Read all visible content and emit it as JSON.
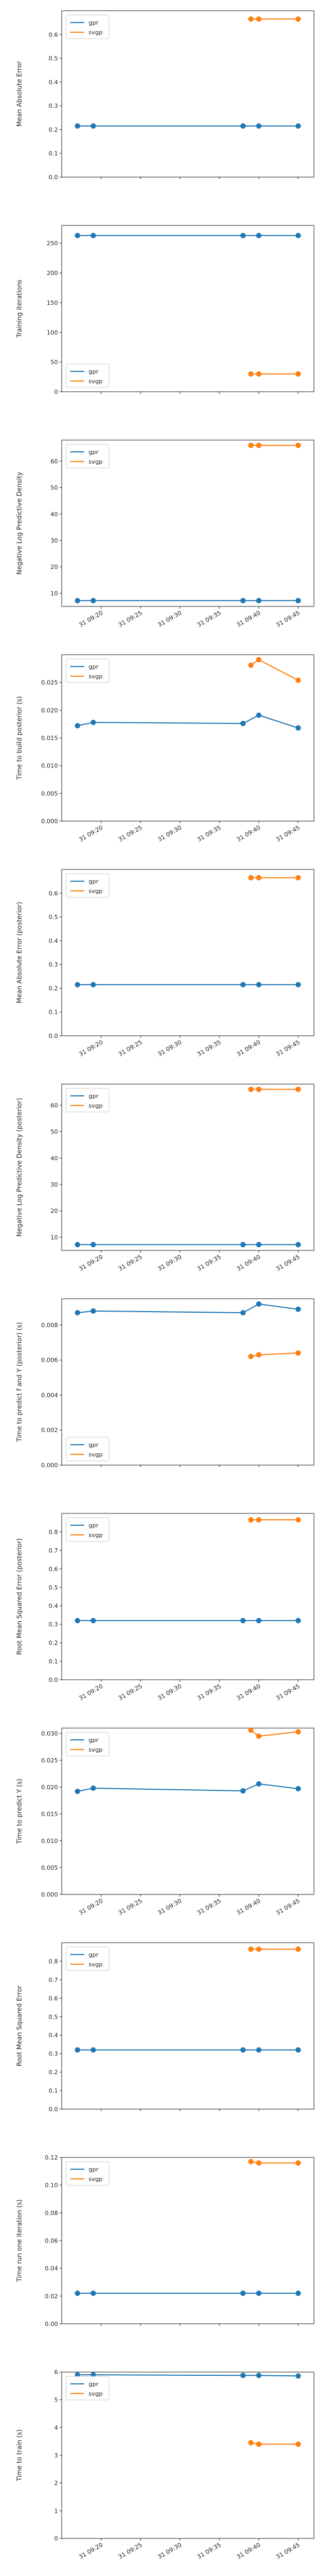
{
  "colors": {
    "gpr": "#1f77b4",
    "svgp": "#ff7f0e",
    "axis": "#222222",
    "legend_border": "#cccccc"
  },
  "chart_data": [
    {
      "type": "line",
      "ylabel": "Mean Absolute Error",
      "ylim": [
        0,
        0.7
      ],
      "yticks": [
        0.0,
        0.1,
        0.2,
        0.3,
        0.4,
        0.5,
        0.6
      ],
      "ytick_labels": [
        "0.0",
        "0.1",
        "0.2",
        "0.3",
        "0.4",
        "0.5",
        "0.6"
      ],
      "show_xticklabels": false,
      "legend": "top-left",
      "series": [
        {
          "name": "gpr",
          "x": [
            "09:17",
            "09:19",
            "09:38",
            "09:40",
            "09:45"
          ],
          "values": [
            0.215,
            0.215,
            0.215,
            0.215,
            0.215
          ]
        },
        {
          "name": "svgp",
          "x": [
            "09:39",
            "09:40",
            "09:45"
          ],
          "values": [
            0.665,
            0.665,
            0.665
          ]
        }
      ]
    },
    {
      "type": "line",
      "ylabel": "Training iterations",
      "ylim": [
        0,
        280
      ],
      "yticks": [
        0,
        50,
        100,
        150,
        200,
        250
      ],
      "ytick_labels": [
        "0",
        "50",
        "100",
        "150",
        "200",
        "250"
      ],
      "show_xticklabels": false,
      "legend": "bottom-left",
      "series": [
        {
          "name": "gpr",
          "x": [
            "09:17",
            "09:19",
            "09:38",
            "09:40",
            "09:45"
          ],
          "values": [
            263,
            263,
            263,
            263,
            263
          ]
        },
        {
          "name": "svgp",
          "x": [
            "09:39",
            "09:40",
            "09:45"
          ],
          "values": [
            30,
            30,
            30
          ]
        }
      ]
    },
    {
      "type": "line",
      "ylabel": "Negative Log Predictive Density",
      "ylim": [
        5,
        68
      ],
      "yticks": [
        10,
        20,
        30,
        40,
        50,
        60
      ],
      "ytick_labels": [
        "10",
        "20",
        "30",
        "40",
        "50",
        "60"
      ],
      "show_xticklabels": true,
      "legend": "top-left",
      "series": [
        {
          "name": "gpr",
          "x": [
            "09:17",
            "09:19",
            "09:38",
            "09:40",
            "09:45"
          ],
          "values": [
            7.2,
            7.2,
            7.2,
            7.2,
            7.2
          ]
        },
        {
          "name": "svgp",
          "x": [
            "09:39",
            "09:40",
            "09:45"
          ],
          "values": [
            66,
            66,
            66
          ]
        }
      ]
    },
    {
      "type": "line",
      "ylabel": "Time to build posterior (s)",
      "ylim": [
        0,
        0.03
      ],
      "yticks": [
        0.0,
        0.005,
        0.01,
        0.015,
        0.02,
        0.025
      ],
      "ytick_labels": [
        "0.000",
        "0.005",
        "0.010",
        "0.015",
        "0.020",
        "0.025"
      ],
      "show_xticklabels": true,
      "legend": "top-left",
      "series": [
        {
          "name": "gpr",
          "x": [
            "09:17",
            "09:19",
            "09:38",
            "09:40",
            "09:45"
          ],
          "values": [
            0.0172,
            0.0178,
            0.0176,
            0.0191,
            0.0168
          ]
        },
        {
          "name": "svgp",
          "x": [
            "09:39",
            "09:40",
            "09:45"
          ],
          "values": [
            0.0281,
            0.0291,
            0.0254
          ]
        }
      ]
    },
    {
      "type": "line",
      "ylabel": "Mean Absolute Error (posterior)",
      "ylim": [
        0,
        0.7
      ],
      "yticks": [
        0.0,
        0.1,
        0.2,
        0.3,
        0.4,
        0.5,
        0.6
      ],
      "ytick_labels": [
        "0.0",
        "0.1",
        "0.2",
        "0.3",
        "0.4",
        "0.5",
        "0.6"
      ],
      "show_xticklabels": true,
      "legend": "top-left",
      "series": [
        {
          "name": "gpr",
          "x": [
            "09:17",
            "09:19",
            "09:38",
            "09:40",
            "09:45"
          ],
          "values": [
            0.215,
            0.215,
            0.215,
            0.215,
            0.215
          ]
        },
        {
          "name": "svgp",
          "x": [
            "09:39",
            "09:40",
            "09:45"
          ],
          "values": [
            0.665,
            0.665,
            0.665
          ]
        }
      ]
    },
    {
      "type": "line",
      "ylabel": "Negative Log Predictive Density (posterior)",
      "ylim": [
        5,
        68
      ],
      "yticks": [
        10,
        20,
        30,
        40,
        50,
        60
      ],
      "ytick_labels": [
        "10",
        "20",
        "30",
        "40",
        "50",
        "60"
      ],
      "show_xticklabels": true,
      "legend": "top-left",
      "series": [
        {
          "name": "gpr",
          "x": [
            "09:17",
            "09:19",
            "09:38",
            "09:40",
            "09:45"
          ],
          "values": [
            7.2,
            7.2,
            7.2,
            7.2,
            7.2
          ]
        },
        {
          "name": "svgp",
          "x": [
            "09:39",
            "09:40",
            "09:45"
          ],
          "values": [
            66,
            66,
            66
          ]
        }
      ]
    },
    {
      "type": "line",
      "ylabel": "Time to predict f and Y (posterior) (s)",
      "ylim": [
        0,
        0.0095
      ],
      "yticks": [
        0.0,
        0.002,
        0.004,
        0.006,
        0.008
      ],
      "ytick_labels": [
        "0.000",
        "0.002",
        "0.004",
        "0.006",
        "0.008"
      ],
      "show_xticklabels": false,
      "legend": "bottom-left",
      "series": [
        {
          "name": "gpr",
          "x": [
            "09:17",
            "09:19",
            "09:38",
            "09:40",
            "09:45"
          ],
          "values": [
            0.0087,
            0.0088,
            0.0087,
            0.0092,
            0.0089
          ]
        },
        {
          "name": "svgp",
          "x": [
            "09:39",
            "09:40",
            "09:45"
          ],
          "values": [
            0.0062,
            0.0063,
            0.0064
          ]
        }
      ]
    },
    {
      "type": "line",
      "ylabel": "Root Mean Squared Error (posterior)",
      "ylim": [
        0,
        0.9
      ],
      "yticks": [
        0.0,
        0.1,
        0.2,
        0.3,
        0.4,
        0.5,
        0.6,
        0.7,
        0.8
      ],
      "ytick_labels": [
        "0.0",
        "0.1",
        "0.2",
        "0.3",
        "0.4",
        "0.5",
        "0.6",
        "0.7",
        "0.8"
      ],
      "show_xticklabels": true,
      "legend": "top-left",
      "series": [
        {
          "name": "gpr",
          "x": [
            "09:17",
            "09:19",
            "09:38",
            "09:40",
            "09:45"
          ],
          "values": [
            0.32,
            0.32,
            0.32,
            0.32,
            0.32
          ]
        },
        {
          "name": "svgp",
          "x": [
            "09:39",
            "09:40",
            "09:45"
          ],
          "values": [
            0.865,
            0.865,
            0.865
          ]
        }
      ]
    },
    {
      "type": "line",
      "ylabel": "Time to predict Y (s)",
      "ylim": [
        0,
        0.031
      ],
      "yticks": [
        0.0,
        0.005,
        0.01,
        0.015,
        0.02,
        0.025,
        0.03
      ],
      "ytick_labels": [
        "0.000",
        "0.005",
        "0.010",
        "0.015",
        "0.020",
        "0.025",
        "0.030"
      ],
      "show_xticklabels": true,
      "legend": "top-left",
      "series": [
        {
          "name": "gpr",
          "x": [
            "09:17",
            "09:19",
            "09:38",
            "09:40",
            "09:45"
          ],
          "values": [
            0.0192,
            0.0198,
            0.0193,
            0.0206,
            0.0197
          ]
        },
        {
          "name": "svgp",
          "x": [
            "09:39",
            "09:40",
            "09:45"
          ],
          "values": [
            0.0306,
            0.0295,
            0.0303
          ]
        }
      ]
    },
    {
      "type": "line",
      "ylabel": "Root Mean Squared Error",
      "ylim": [
        0,
        0.9
      ],
      "yticks": [
        0.0,
        0.1,
        0.2,
        0.3,
        0.4,
        0.5,
        0.6,
        0.7,
        0.8
      ],
      "ytick_labels": [
        "0.0",
        "0.1",
        "0.2",
        "0.3",
        "0.4",
        "0.5",
        "0.6",
        "0.7",
        "0.8"
      ],
      "show_xticklabels": false,
      "legend": "top-left",
      "series": [
        {
          "name": "gpr",
          "x": [
            "09:17",
            "09:19",
            "09:38",
            "09:40",
            "09:45"
          ],
          "values": [
            0.32,
            0.32,
            0.32,
            0.32,
            0.32
          ]
        },
        {
          "name": "svgp",
          "x": [
            "09:39",
            "09:40",
            "09:45"
          ],
          "values": [
            0.865,
            0.865,
            0.865
          ]
        }
      ]
    },
    {
      "type": "line",
      "ylabel": "Time run one iteration (s)",
      "ylim": [
        0,
        0.12
      ],
      "yticks": [
        0.0,
        0.02,
        0.04,
        0.06,
        0.08,
        0.1,
        0.12
      ],
      "ytick_labels": [
        "0.00",
        "0.02",
        "0.04",
        "0.06",
        "0.08",
        "0.10",
        "0.12"
      ],
      "show_xticklabels": false,
      "legend": "top-left",
      "series": [
        {
          "name": "gpr",
          "x": [
            "09:17",
            "09:19",
            "09:38",
            "09:40",
            "09:45"
          ],
          "values": [
            0.022,
            0.022,
            0.022,
            0.022,
            0.022
          ]
        },
        {
          "name": "svgp",
          "x": [
            "09:39",
            "09:40",
            "09:45"
          ],
          "values": [
            0.117,
            0.116,
            0.116
          ]
        }
      ]
    },
    {
      "type": "line",
      "ylabel": "Time to train (s)",
      "ylim": [
        0,
        6
      ],
      "yticks": [
        0,
        1,
        2,
        3,
        4,
        5,
        6
      ],
      "ytick_labels": [
        "0",
        "1",
        "2",
        "3",
        "4",
        "5",
        "6"
      ],
      "show_xticklabels": true,
      "legend": "top-left",
      "series": [
        {
          "name": "gpr",
          "x": [
            "09:17",
            "09:19",
            "09:38",
            "09:40",
            "09:45"
          ],
          "values": [
            5.9,
            5.9,
            5.88,
            5.88,
            5.86
          ]
        },
        {
          "name": "svgp",
          "x": [
            "09:39",
            "09:40",
            "09:45"
          ],
          "values": [
            3.45,
            3.4,
            3.4
          ]
        }
      ]
    }
  ],
  "xaxis": {
    "range": [
      "09:15",
      "09:47"
    ],
    "ticks": [
      "09:20",
      "09:25",
      "09:30",
      "09:35",
      "09:40",
      "09:45"
    ],
    "tick_labels": [
      "31 09:20",
      "31 09:25",
      "31 09:30",
      "31 09:35",
      "31 09:40",
      "31 09:45"
    ]
  }
}
